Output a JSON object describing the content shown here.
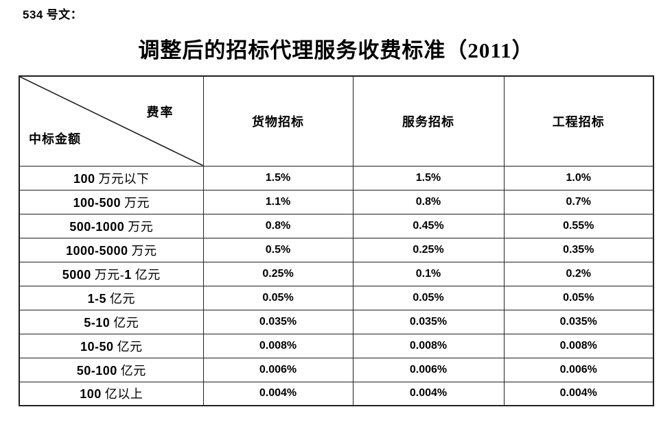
{
  "doc_label": "534 号文：",
  "title": "调整后的招标代理服务收费标准（2011）",
  "table": {
    "corner": {
      "top_right": "费率",
      "bottom_left": "中标金额"
    },
    "columns": [
      "货物招标",
      "服务招标",
      "工程招标"
    ],
    "rows": [
      {
        "label": "100 万元以下",
        "values": [
          "1.5%",
          "1.5%",
          "1.0%"
        ]
      },
      {
        "label": "100-500 万元",
        "values": [
          "1.1%",
          "0.8%",
          "0.7%"
        ]
      },
      {
        "label": "500-1000 万元",
        "values": [
          "0.8%",
          "0.45%",
          "0.55%"
        ]
      },
      {
        "label": "1000-5000 万元",
        "values": [
          "0.5%",
          "0.25%",
          "0.35%"
        ]
      },
      {
        "label": "5000 万元-1 亿元",
        "values": [
          "0.25%",
          "0.1%",
          "0.2%"
        ]
      },
      {
        "label": "1-5 亿元",
        "values": [
          "0.05%",
          "0.05%",
          "0.05%"
        ]
      },
      {
        "label": "5-10 亿元",
        "values": [
          "0.035%",
          "0.035%",
          "0.035%"
        ]
      },
      {
        "label": "10-50 亿元",
        "values": [
          "0.008%",
          "0.008%",
          "0.008%"
        ]
      },
      {
        "label": "50-100 亿元",
        "values": [
          "0.006%",
          "0.006%",
          "0.006%"
        ]
      },
      {
        "label": "100 亿以上",
        "values": [
          "0.004%",
          "0.004%",
          "0.004%"
        ]
      }
    ],
    "border_color": "#1f1f1f",
    "text_color": "#000000"
  }
}
